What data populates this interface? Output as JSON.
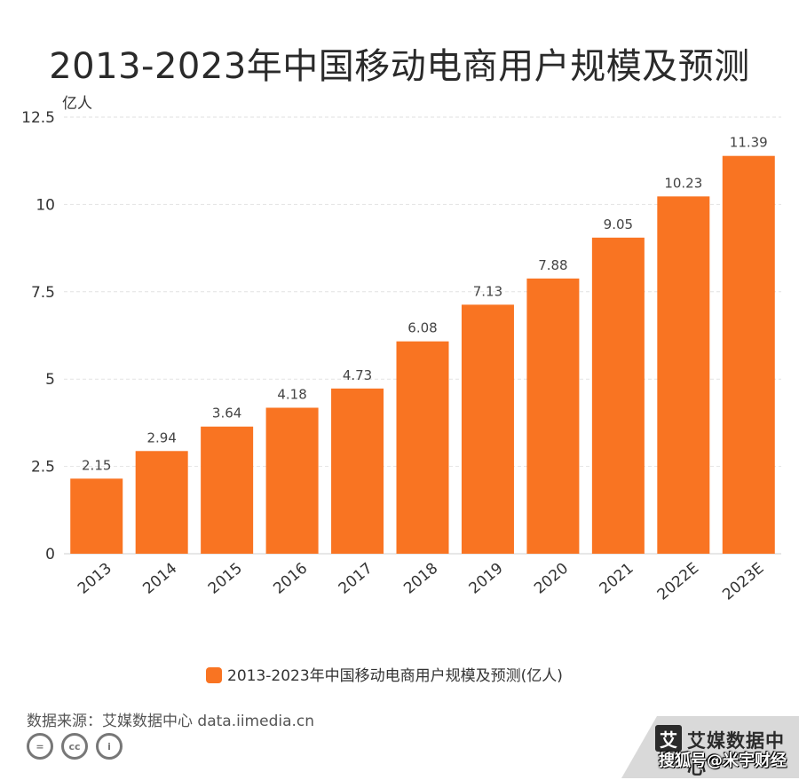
{
  "title": "2013-2023年中国移动电商用户规模及预测",
  "source": "数据来源：艾媒数据中心 data.iimedia.cn",
  "brand": {
    "name": "艾媒数据中心",
    "logo_char": "艾"
  },
  "watermark": "搜狐号@米宇财经",
  "license_icons": [
    "=",
    "cc",
    "i"
  ],
  "chart_data": {
    "type": "bar",
    "unit_label": "亿人",
    "categories": [
      "2013",
      "2014",
      "2015",
      "2016",
      "2017",
      "2018",
      "2019",
      "2020",
      "2021",
      "2022E",
      "2023E"
    ],
    "series": [
      {
        "name": "2013-2023年中国移动电商用户规模及预测(亿人)",
        "values": [
          2.15,
          2.94,
          3.64,
          4.18,
          4.73,
          6.08,
          7.13,
          7.88,
          9.05,
          10.23,
          11.39
        ]
      }
    ],
    "data_labels": [
      "2.15",
      "2.94",
      "3.64",
      "4.18",
      "4.73",
      "6.08",
      "7.13",
      "7.88",
      "9.05",
      "10.23",
      "11.39"
    ],
    "ylim": [
      0,
      12.5
    ],
    "yticks": [
      0,
      2.5,
      5,
      7.5,
      10,
      12.5
    ],
    "ytick_labels": [
      "0",
      "2.5",
      "5",
      "7.5",
      "10",
      "12.5"
    ],
    "grid": true,
    "legend_position": "bottom",
    "color": "#F97422"
  }
}
